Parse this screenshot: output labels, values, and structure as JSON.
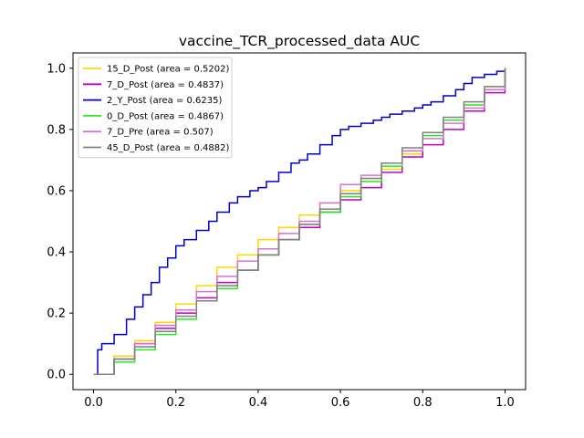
{
  "chart_data": {
    "type": "line",
    "title": "vaccine_TCR_processed_data AUC",
    "xlabel": "",
    "ylabel": "",
    "xlim": [
      -0.05,
      1.05
    ],
    "ylim": [
      -0.05,
      1.05
    ],
    "xticks": [
      0.0,
      0.2,
      0.4,
      0.6,
      0.8,
      1.0
    ],
    "yticks": [
      0.0,
      0.2,
      0.4,
      0.6,
      0.8,
      1.0
    ],
    "xtick_labels": [
      "0.0",
      "0.2",
      "0.4",
      "0.6",
      "0.8",
      "1.0"
    ],
    "ytick_labels": [
      "0.0",
      "0.2",
      "0.4",
      "0.6",
      "0.8",
      "1.0"
    ],
    "grid": false,
    "legend_position": "top-left",
    "series": [
      {
        "name": "15_D_Post (area = 0.5202)",
        "color": "#ffd700",
        "x": [
          0,
          0.05,
          0.1,
          0.15,
          0.2,
          0.25,
          0.3,
          0.35,
          0.4,
          0.45,
          0.5,
          0.55,
          0.6,
          0.65,
          0.7,
          0.75,
          0.8,
          0.85,
          0.9,
          0.95,
          1.0
        ],
        "y": [
          0,
          0.06,
          0.11,
          0.17,
          0.23,
          0.29,
          0.35,
          0.39,
          0.44,
          0.48,
          0.52,
          0.56,
          0.6,
          0.64,
          0.67,
          0.72,
          0.79,
          0.83,
          0.88,
          0.94,
          1.0
        ]
      },
      {
        "name": "7_D_Post (area = 0.4837)",
        "color": "#c000c0",
        "x": [
          0,
          0.05,
          0.1,
          0.15,
          0.2,
          0.25,
          0.3,
          0.35,
          0.4,
          0.45,
          0.5,
          0.55,
          0.6,
          0.65,
          0.7,
          0.75,
          0.8,
          0.85,
          0.9,
          0.95,
          1.0
        ],
        "y": [
          0,
          0.05,
          0.1,
          0.15,
          0.2,
          0.25,
          0.3,
          0.34,
          0.39,
          0.44,
          0.48,
          0.53,
          0.57,
          0.61,
          0.66,
          0.71,
          0.75,
          0.8,
          0.86,
          0.92,
          1.0
        ]
      },
      {
        "name": "2_Y_Post (area = 0.6235)",
        "color": "#0000cc",
        "x": [
          0,
          0.01,
          0.02,
          0.05,
          0.08,
          0.1,
          0.12,
          0.14,
          0.16,
          0.18,
          0.2,
          0.22,
          0.25,
          0.28,
          0.3,
          0.33,
          0.35,
          0.38,
          0.4,
          0.42,
          0.45,
          0.48,
          0.5,
          0.52,
          0.55,
          0.58,
          0.6,
          0.62,
          0.65,
          0.68,
          0.7,
          0.72,
          0.75,
          0.78,
          0.8,
          0.82,
          0.85,
          0.88,
          0.9,
          0.92,
          0.95,
          0.98,
          1.0
        ],
        "y": [
          0,
          0.08,
          0.1,
          0.13,
          0.18,
          0.22,
          0.26,
          0.3,
          0.35,
          0.38,
          0.42,
          0.44,
          0.47,
          0.5,
          0.53,
          0.56,
          0.58,
          0.6,
          0.61,
          0.63,
          0.66,
          0.69,
          0.7,
          0.72,
          0.75,
          0.78,
          0.8,
          0.81,
          0.82,
          0.83,
          0.84,
          0.85,
          0.86,
          0.87,
          0.88,
          0.89,
          0.91,
          0.93,
          0.95,
          0.97,
          0.98,
          0.99,
          1.0
        ]
      },
      {
        "name": "0_D_Post (area = 0.4867)",
        "color": "#22ee22",
        "x": [
          0,
          0.05,
          0.1,
          0.15,
          0.2,
          0.25,
          0.3,
          0.35,
          0.4,
          0.45,
          0.5,
          0.55,
          0.6,
          0.65,
          0.7,
          0.75,
          0.8,
          0.85,
          0.9,
          0.95,
          1.0
        ],
        "y": [
          0,
          0.04,
          0.08,
          0.13,
          0.18,
          0.24,
          0.28,
          0.34,
          0.39,
          0.44,
          0.49,
          0.53,
          0.58,
          0.63,
          0.68,
          0.73,
          0.78,
          0.83,
          0.88,
          0.93,
          1.0
        ]
      },
      {
        "name": "7_D_Pre (area = 0.507)",
        "color": "#da70d6",
        "x": [
          0,
          0.05,
          0.1,
          0.15,
          0.2,
          0.25,
          0.3,
          0.35,
          0.4,
          0.45,
          0.5,
          0.55,
          0.6,
          0.65,
          0.7,
          0.75,
          0.8,
          0.85,
          0.9,
          0.95,
          1.0
        ],
        "y": [
          0,
          0.05,
          0.1,
          0.16,
          0.21,
          0.27,
          0.32,
          0.37,
          0.41,
          0.46,
          0.5,
          0.56,
          0.62,
          0.65,
          0.69,
          0.73,
          0.77,
          0.82,
          0.87,
          0.93,
          1.0
        ]
      },
      {
        "name": "45_D_Post (area = 0.4882)",
        "color": "#808080",
        "x": [
          0,
          0.05,
          0.1,
          0.15,
          0.2,
          0.25,
          0.3,
          0.35,
          0.4,
          0.45,
          0.5,
          0.55,
          0.6,
          0.65,
          0.7,
          0.75,
          0.8,
          0.85,
          0.9,
          0.95,
          1.0
        ],
        "y": [
          0,
          0.05,
          0.09,
          0.14,
          0.19,
          0.24,
          0.29,
          0.34,
          0.39,
          0.44,
          0.49,
          0.54,
          0.59,
          0.64,
          0.69,
          0.74,
          0.79,
          0.84,
          0.89,
          0.94,
          1.0
        ]
      }
    ]
  }
}
